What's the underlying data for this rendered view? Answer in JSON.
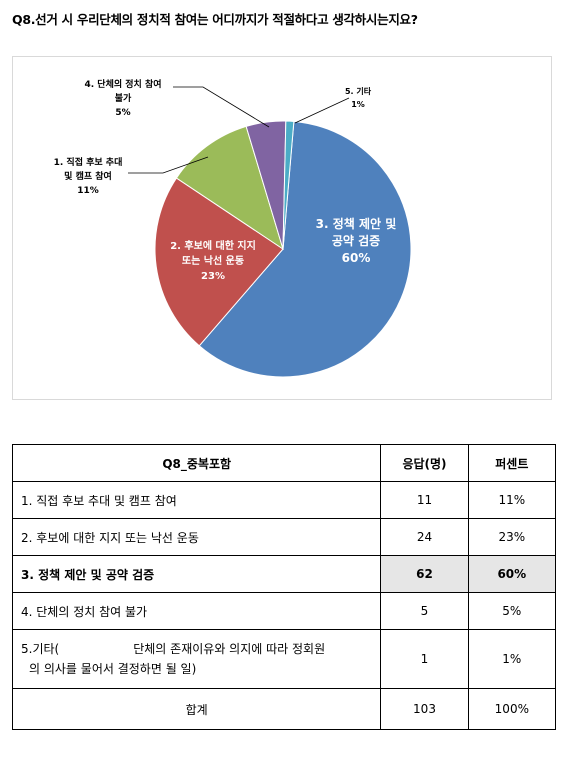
{
  "question": "Q8.선거 시 우리단체의 정치적 참여는 어디까지가 적절하다고 생각하시는지요?",
  "colors": {
    "slice3": "#4f81bd",
    "slice2": "#c0504d",
    "slice1": "#9bbb59",
    "slice4": "#8064a2",
    "slice5": "#4bacc6",
    "leader": "#000000"
  },
  "chart_data": {
    "type": "pie",
    "title": "Q8",
    "slices": [
      {
        "label_lines": [
          "3. 정책 제안 및",
          "공약 검증"
        ],
        "percent_text": "60%",
        "value": 60
      },
      {
        "label_lines": [
          "2. 후보에 대한 지지",
          "또는 낙선 운동"
        ],
        "percent_text": "23%",
        "value": 23
      },
      {
        "label_lines": [
          "1. 직접 후보 추대",
          "및 캠프 참여"
        ],
        "percent_text": "11%",
        "value": 11
      },
      {
        "label_lines": [
          "4. 단체의 정치 참여",
          "불가"
        ],
        "percent_text": "5%",
        "value": 5
      },
      {
        "label_lines": [
          "5. 기타"
        ],
        "percent_text": "1%",
        "value": 1
      }
    ]
  },
  "table": {
    "headers": [
      "Q8_중복포함",
      "응답(명)",
      "퍼센트"
    ],
    "rows": [
      {
        "label": "1. 직접 후보 추대 및 캠프 참여",
        "count": "11",
        "percent": "11%"
      },
      {
        "label": "2. 후보에 대한 지지 또는 낙선 운동",
        "count": "24",
        "percent": "23%"
      },
      {
        "label": "3. 정책 제안 및 공약 검증",
        "count": "62",
        "percent": "60%"
      },
      {
        "label": "4. 단체의 정치 참여 불가",
        "count": "5",
        "percent": "5%"
      }
    ],
    "etc_row": {
      "label_part1": "5.기타(",
      "label_part2": "단체의 존재이유와 의지에 따라 정회원",
      "label_part3": "의 의사를 물어서 결정하면 될 일)",
      "count": "1",
      "percent": "1%"
    },
    "total": {
      "label": "합계",
      "count": "103",
      "percent": "100%"
    }
  }
}
